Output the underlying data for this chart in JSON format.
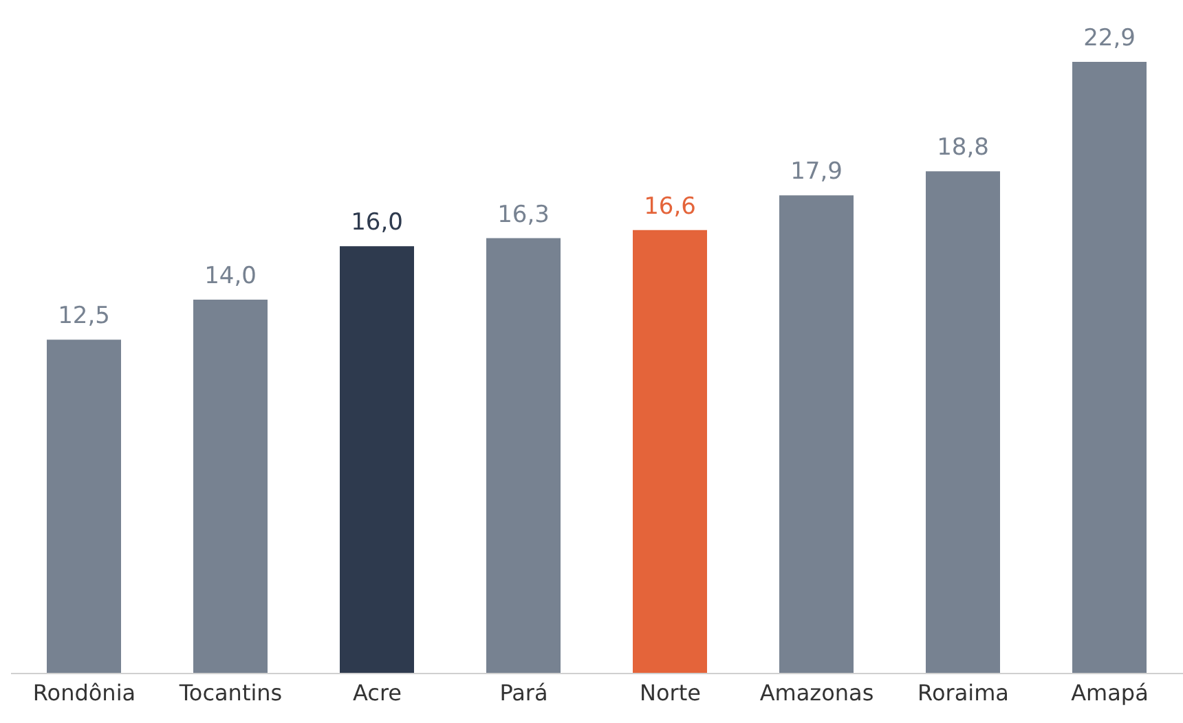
{
  "chart_data": {
    "type": "bar",
    "categories": [
      "Rondônia",
      "Tocantins",
      "Acre",
      "Pará",
      "Norte",
      "Amazonas",
      "Roraima",
      "Amapá"
    ],
    "values": [
      12.5,
      14.0,
      16.0,
      16.3,
      16.6,
      17.9,
      18.8,
      22.9
    ],
    "value_labels": [
      "12,5",
      "14,0",
      "16,0",
      "16,3",
      "16,6",
      "17,9",
      "18,8",
      "22,9"
    ],
    "colors": [
      "#778291",
      "#778291",
      "#2e3a4e",
      "#778291",
      "#e4643a",
      "#778291",
      "#778291",
      "#778291"
    ],
    "grid": false,
    "legend": false
  }
}
